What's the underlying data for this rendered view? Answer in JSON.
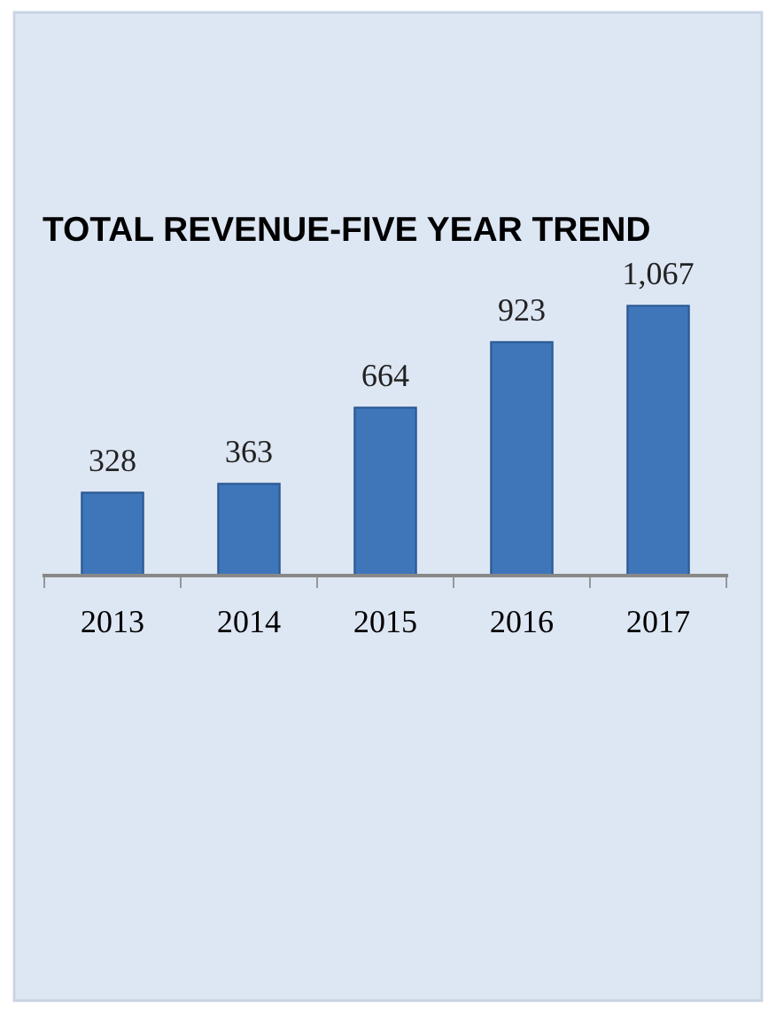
{
  "chart_data": {
    "type": "bar",
    "title": "TOTAL REVENUE-FIVE YEAR TREND",
    "categories": [
      "2013",
      "2014",
      "2015",
      "2016",
      "2017"
    ],
    "values": [
      328,
      363,
      664,
      923,
      1067
    ],
    "value_labels": [
      "328",
      "363",
      "664",
      "923",
      "1,067"
    ],
    "color": "#3f76ba",
    "grid": false,
    "legend": false
  }
}
